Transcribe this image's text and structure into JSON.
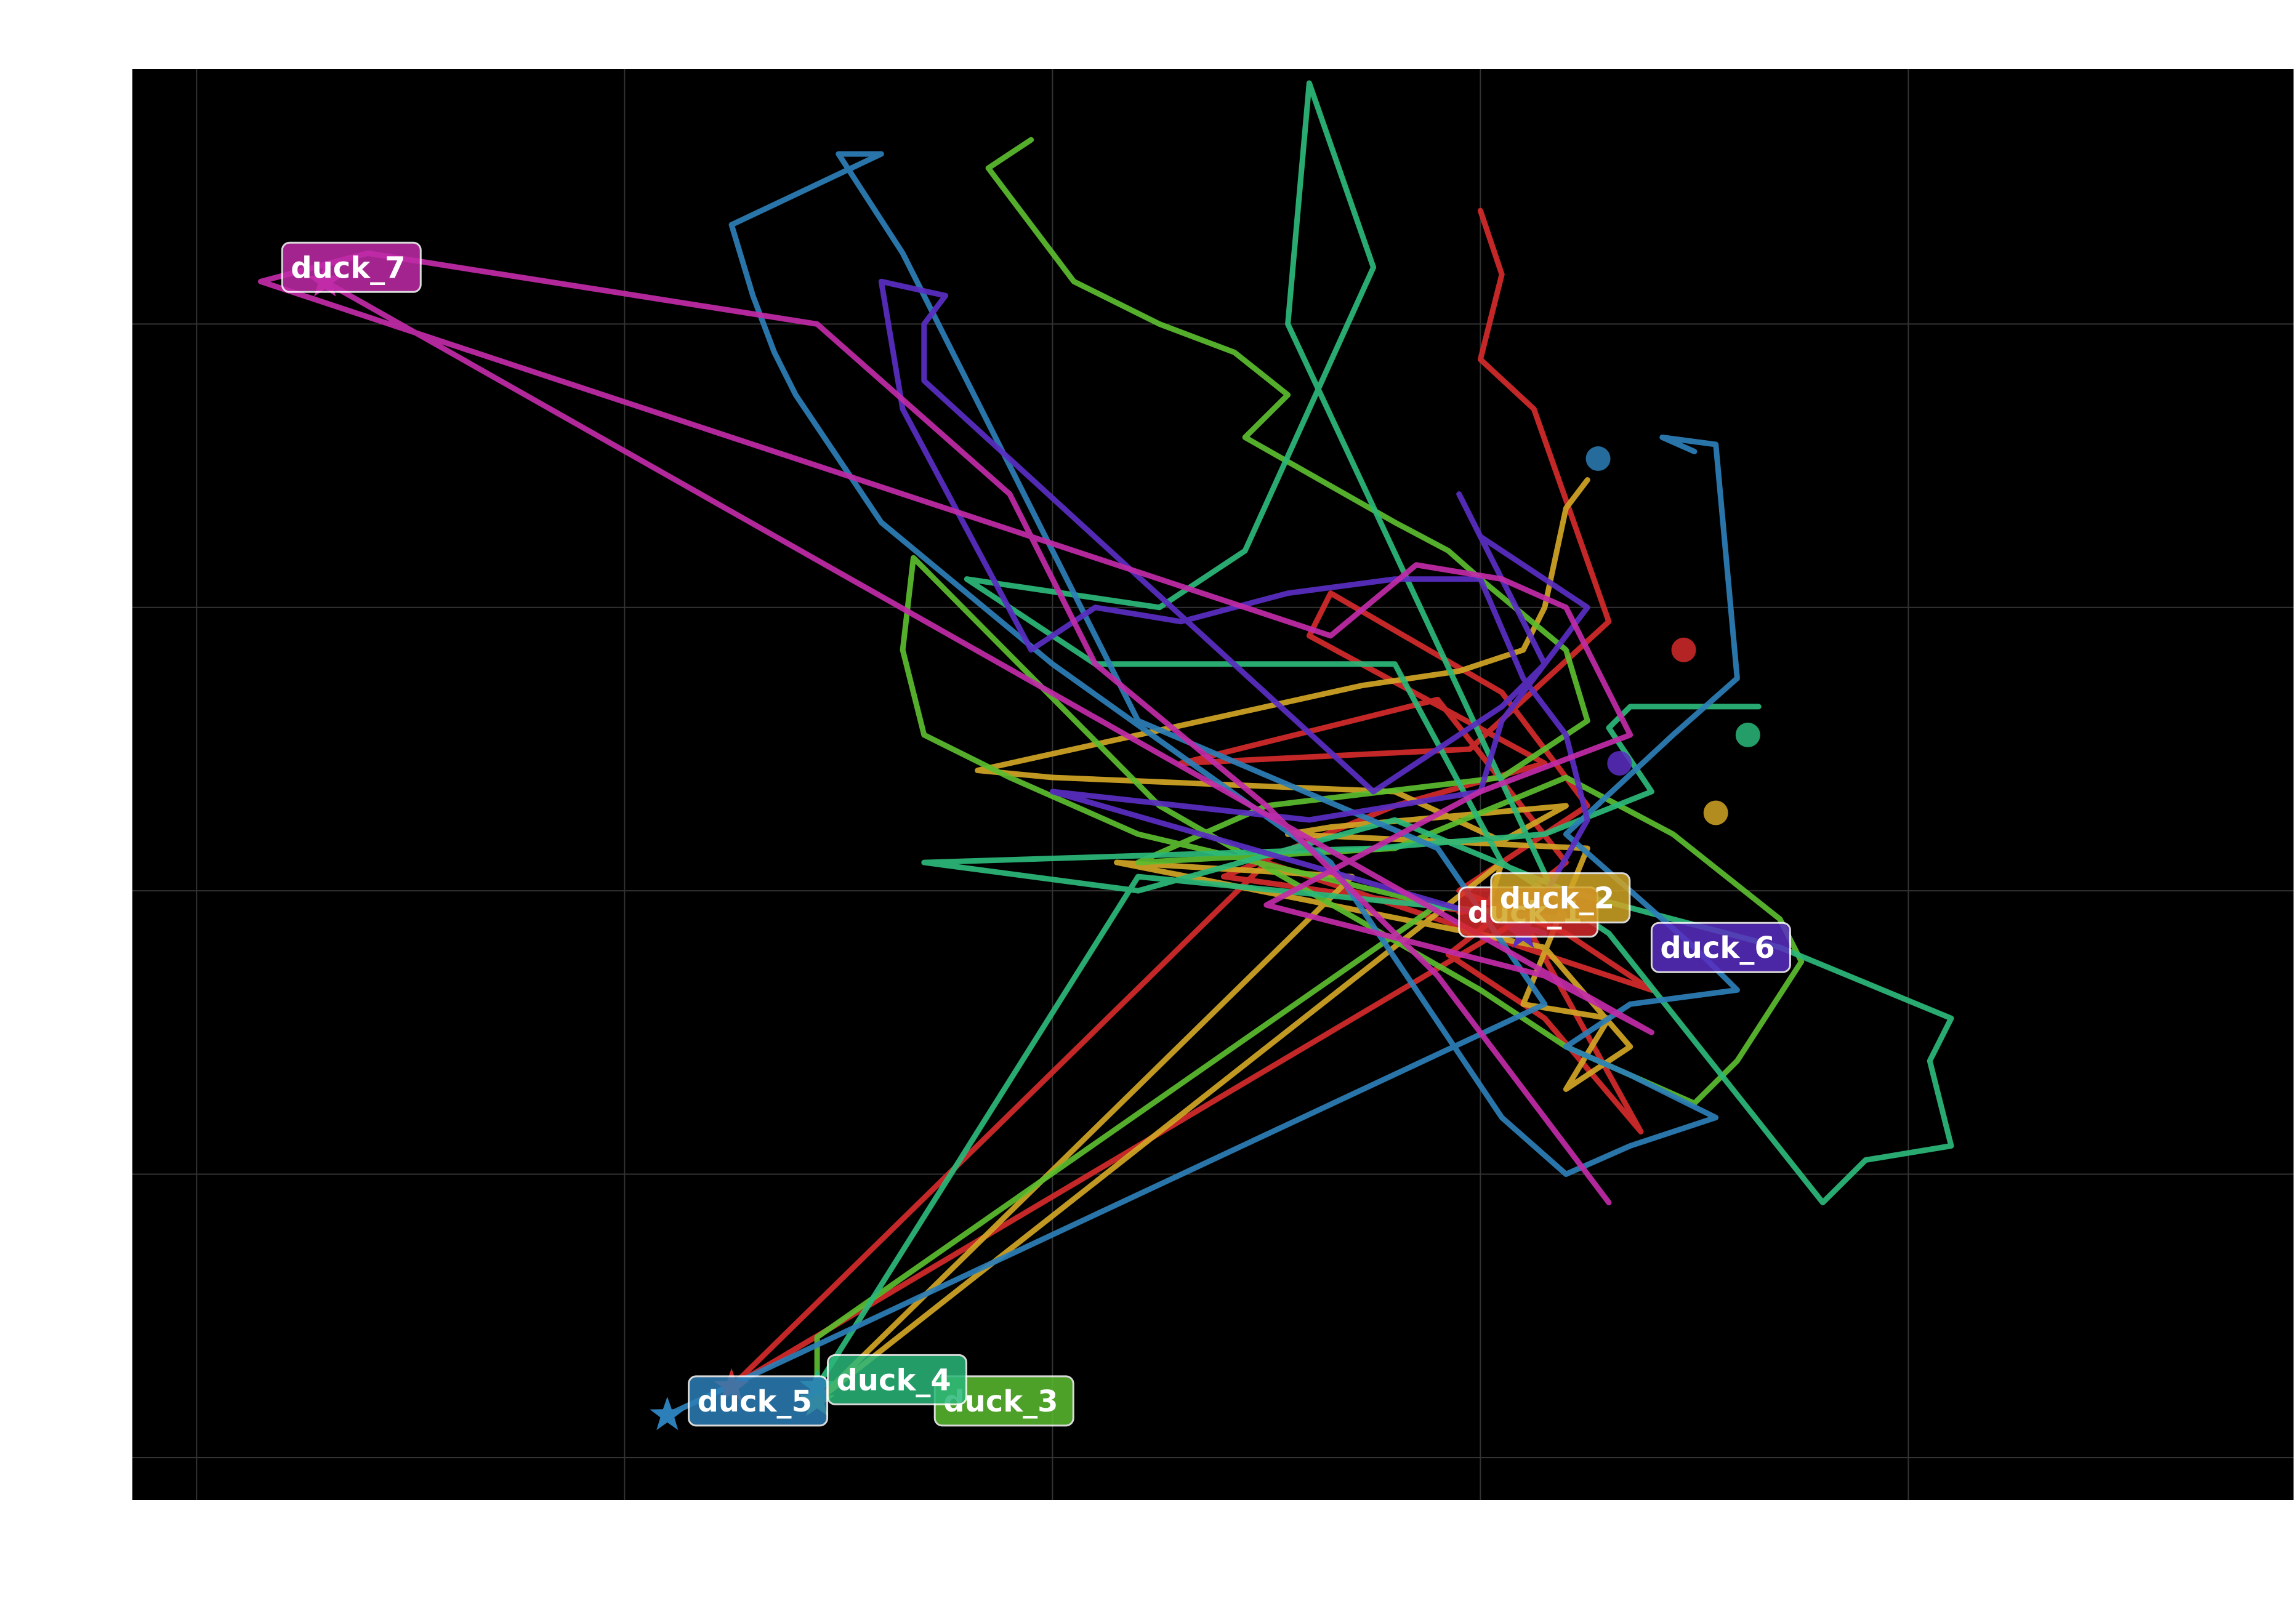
{
  "chart_data": {
    "type": "line",
    "title": "",
    "xlabel": "",
    "ylabel": "",
    "background": "#000000",
    "grid": true,
    "grid_color": "#333333",
    "xlim": [
      -0.3,
      9.8
    ],
    "ylim": [
      -0.3,
      9.8
    ],
    "xticks": [
      0,
      2,
      4,
      6,
      8
    ],
    "yticks": [
      0,
      2,
      4,
      6,
      8
    ],
    "series": [
      {
        "name": "duck_1",
        "color": "#d42a2a",
        "points": [
          [
            6.0,
            8.8
          ],
          [
            6.1,
            8.35
          ],
          [
            6.0,
            7.75
          ],
          [
            6.25,
            7.4
          ],
          [
            6.6,
            5.9
          ],
          [
            5.95,
            5.0
          ],
          [
            4.6,
            4.9
          ],
          [
            5.8,
            5.35
          ],
          [
            6.4,
            4.2
          ],
          [
            5.85,
            3.55
          ],
          [
            6.3,
            3.1
          ],
          [
            6.75,
            2.3
          ],
          [
            6.2,
            3.8
          ],
          [
            4.8,
            4.1
          ],
          [
            5.6,
            4.6
          ],
          [
            6.3,
            4.9
          ],
          [
            5.2,
            5.8
          ],
          [
            5.3,
            6.1
          ],
          [
            6.1,
            5.4
          ],
          [
            6.5,
            4.6
          ],
          [
            5.9,
            4.0
          ],
          [
            6.4,
            3.7
          ],
          [
            6.8,
            3.3
          ],
          [
            5.0,
            4.2
          ],
          [
            2.5,
            0.5
          ],
          [
            6.3,
            3.9
          ],
          [
            5.9,
            3.85
          ]
        ],
        "start": [
          2.5,
          0.5
        ],
        "label_pos": [
          5.9,
          3.85
        ]
      },
      {
        "name": "duck_2",
        "color": "#d1a525",
        "points": [
          [
            6.5,
            6.9
          ],
          [
            6.4,
            6.7
          ],
          [
            6.3,
            6.0
          ],
          [
            6.2,
            5.7
          ],
          [
            5.9,
            5.55
          ],
          [
            5.45,
            5.45
          ],
          [
            3.65,
            4.85
          ],
          [
            4.0,
            4.8
          ],
          [
            5.6,
            4.7
          ],
          [
            6.1,
            4.35
          ],
          [
            6.4,
            4.6
          ],
          [
            5.3,
            4.45
          ],
          [
            5.1,
            4.4
          ],
          [
            6.5,
            4.3
          ],
          [
            6.2,
            3.2
          ],
          [
            6.6,
            3.1
          ],
          [
            6.4,
            2.6
          ],
          [
            6.7,
            2.9
          ],
          [
            6.3,
            3.6
          ],
          [
            4.3,
            4.2
          ],
          [
            5.4,
            4.1
          ],
          [
            2.9,
            0.4
          ],
          [
            6.1,
            4.2
          ],
          [
            6.05,
            3.95
          ]
        ],
        "start": [
          2.9,
          0.4
        ],
        "label_pos": [
          6.05,
          3.95
        ]
      },
      {
        "name": "duck_3",
        "color": "#5bbd2f",
        "points": [
          [
            3.9,
            9.3
          ],
          [
            3.7,
            9.1
          ],
          [
            4.1,
            8.3
          ],
          [
            4.5,
            8.0
          ],
          [
            4.85,
            7.8
          ],
          [
            5.1,
            7.5
          ],
          [
            4.9,
            7.2
          ],
          [
            5.6,
            6.6
          ],
          [
            5.85,
            6.4
          ],
          [
            6.0,
            6.2
          ],
          [
            6.4,
            5.7
          ],
          [
            6.5,
            5.2
          ],
          [
            6.1,
            4.8
          ],
          [
            5.0,
            4.6
          ],
          [
            4.4,
            4.2
          ],
          [
            5.6,
            4.3
          ],
          [
            6.4,
            4.8
          ],
          [
            6.9,
            4.4
          ],
          [
            7.4,
            3.8
          ],
          [
            7.5,
            3.5
          ],
          [
            7.2,
            2.8
          ],
          [
            7.0,
            2.5
          ],
          [
            6.4,
            2.9
          ],
          [
            6.0,
            3.3
          ],
          [
            4.5,
            4.6
          ],
          [
            3.35,
            6.35
          ],
          [
            3.3,
            5.7
          ],
          [
            3.4,
            5.1
          ],
          [
            3.8,
            4.8
          ],
          [
            4.4,
            4.4
          ],
          [
            5.8,
            3.9
          ],
          [
            2.9,
            0.85
          ],
          [
            2.9,
            0.4
          ]
        ],
        "start": [
          2.9,
          0.4
        ],
        "label_pos": [
          3.45,
          0.4
        ]
      },
      {
        "name": "duck_4",
        "color": "#2bb87a",
        "points": [
          [
            7.3,
            5.3
          ],
          [
            6.7,
            5.3
          ],
          [
            6.6,
            5.15
          ],
          [
            6.8,
            4.7
          ],
          [
            6.3,
            4.4
          ],
          [
            5.5,
            4.3
          ],
          [
            3.4,
            4.2
          ],
          [
            4.4,
            4.0
          ],
          [
            5.6,
            4.5
          ],
          [
            6.4,
            4.0
          ],
          [
            7.4,
            3.6
          ],
          [
            8.2,
            3.1
          ],
          [
            8.1,
            2.8
          ],
          [
            8.2,
            2.2
          ],
          [
            7.8,
            2.1
          ],
          [
            7.6,
            1.8
          ],
          [
            6.6,
            3.7
          ],
          [
            6.1,
            4.2
          ],
          [
            5.6,
            5.6
          ],
          [
            5.0,
            5.6
          ],
          [
            4.2,
            5.6
          ],
          [
            3.6,
            6.2
          ],
          [
            4.5,
            6.0
          ],
          [
            4.9,
            6.4
          ],
          [
            5.5,
            8.4
          ],
          [
            5.2,
            9.7
          ],
          [
            5.1,
            8.0
          ],
          [
            6.4,
            3.8
          ],
          [
            4.4,
            4.1
          ],
          [
            2.9,
            0.5
          ]
        ],
        "start": [
          2.9,
          0.5
        ],
        "label_pos": [
          2.95,
          0.55
        ]
      },
      {
        "name": "duck_5",
        "color": "#2c7fb8",
        "points": [
          [
            7.0,
            7.1
          ],
          [
            6.85,
            7.2
          ],
          [
            7.1,
            7.15
          ],
          [
            7.2,
            5.5
          ],
          [
            6.9,
            5.1
          ],
          [
            6.4,
            4.4
          ],
          [
            6.7,
            4.0
          ],
          [
            7.0,
            3.6
          ],
          [
            7.2,
            3.3
          ],
          [
            6.7,
            3.2
          ],
          [
            6.4,
            2.9
          ],
          [
            6.7,
            2.7
          ],
          [
            7.1,
            2.4
          ],
          [
            6.7,
            2.2
          ],
          [
            6.4,
            2.0
          ],
          [
            6.1,
            2.4
          ],
          [
            5.3,
            4.2
          ],
          [
            4.0,
            5.6
          ],
          [
            3.2,
            6.6
          ],
          [
            2.8,
            7.5
          ],
          [
            2.7,
            7.8
          ],
          [
            2.6,
            8.2
          ],
          [
            2.5,
            8.7
          ],
          [
            3.2,
            9.2
          ],
          [
            3.0,
            9.2
          ],
          [
            3.3,
            8.5
          ],
          [
            4.4,
            5.2
          ],
          [
            5.8,
            4.3
          ],
          [
            6.3,
            3.2
          ],
          [
            2.2,
            0.3
          ]
        ],
        "start": [
          2.2,
          0.3
        ],
        "label_pos": [
          2.3,
          0.4
        ]
      },
      {
        "name": "duck_6",
        "color": "#5a2ec2",
        "points": [
          [
            6.2,
            3.7
          ],
          [
            6.5,
            4.5
          ],
          [
            6.4,
            5.1
          ],
          [
            6.2,
            5.5
          ],
          [
            6.0,
            6.2
          ],
          [
            5.6,
            6.2
          ],
          [
            5.1,
            6.1
          ],
          [
            4.6,
            5.9
          ],
          [
            4.2,
            6.0
          ],
          [
            3.9,
            5.7
          ],
          [
            3.3,
            7.4
          ],
          [
            3.2,
            8.3
          ],
          [
            3.5,
            8.2
          ],
          [
            3.4,
            8.0
          ],
          [
            3.4,
            7.6
          ],
          [
            5.5,
            4.7
          ],
          [
            6.1,
            5.3
          ],
          [
            6.3,
            5.6
          ],
          [
            6.5,
            6.0
          ],
          [
            6.0,
            6.5
          ],
          [
            5.9,
            6.8
          ],
          [
            6.3,
            5.6
          ],
          [
            6.1,
            5.2
          ],
          [
            6.0,
            4.7
          ],
          [
            5.2,
            4.5
          ],
          [
            4.0,
            4.7
          ],
          [
            6.3,
            3.7
          ]
        ],
        "start": [
          6.2,
          3.7
        ],
        "label_pos": [
          6.8,
          3.6
        ]
      },
      {
        "name": "duck_7",
        "color": "#c12ba8",
        "points": [
          [
            6.5,
            2.0
          ],
          [
            6.6,
            1.8
          ],
          [
            5.8,
            3.4
          ],
          [
            5.0,
            4.6
          ],
          [
            4.2,
            5.6
          ],
          [
            3.8,
            6.8
          ],
          [
            2.9,
            8.0
          ],
          [
            0.8,
            8.5
          ],
          [
            0.3,
            8.3
          ],
          [
            5.3,
            5.8
          ],
          [
            5.7,
            6.3
          ],
          [
            6.1,
            6.2
          ],
          [
            6.4,
            6.0
          ],
          [
            6.7,
            5.1
          ],
          [
            6.0,
            4.7
          ],
          [
            5.5,
            4.3
          ],
          [
            5.0,
            3.9
          ],
          [
            6.3,
            3.4
          ],
          [
            6.8,
            3.0
          ],
          [
            0.6,
            8.3
          ]
        ],
        "start": [
          0.6,
          8.3
        ],
        "label_pos": [
          0.4,
          8.4
        ]
      }
    ],
    "end_markers": [
      {
        "name": "duck_1",
        "x": 6.95,
        "y": 5.7
      },
      {
        "name": "duck_2",
        "x": 7.1,
        "y": 4.55
      },
      {
        "name": "duck_4",
        "x": 7.25,
        "y": 5.1
      },
      {
        "name": "duck_5",
        "x": 6.55,
        "y": 7.05
      },
      {
        "name": "duck_6",
        "x": 6.65,
        "y": 4.9
      }
    ]
  },
  "labels": {
    "duck_1": "duck_1",
    "duck_2": "duck_2",
    "duck_3": "duck_3",
    "duck_4": "duck_4",
    "duck_5": "duck_5",
    "duck_6": "duck_6",
    "duck_7": "duck_7"
  }
}
